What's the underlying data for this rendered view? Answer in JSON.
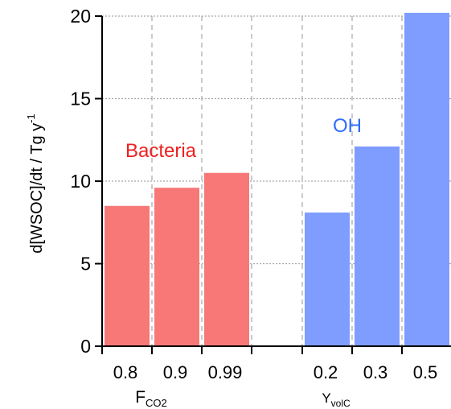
{
  "chart_data": {
    "type": "bar",
    "ylabel": "d[WSOC]/dt / Tg y",
    "ylabel_superscript": "-1",
    "ylim": [
      0,
      20
    ],
    "yticks": [
      "0",
      "5",
      "10",
      "15",
      "20"
    ],
    "grid": true,
    "groups": [
      {
        "name": "Bacteria",
        "color": "#f87878",
        "label_color": "#ee1f1f",
        "categories": [
          "0.8",
          "0.9",
          "0.99"
        ],
        "values": [
          8.5,
          9.6,
          10.5
        ],
        "axis_label_main": "F",
        "axis_label_sub": "CO2"
      },
      {
        "name": "OH",
        "color": "#7f9cff",
        "label_color": "#2f6bff",
        "categories": [
          "0.2",
          "0.3",
          "0.5"
        ],
        "values": [
          8.1,
          12.1,
          20.2
        ],
        "axis_label_main": "Y",
        "axis_label_sub": "volC"
      }
    ]
  }
}
